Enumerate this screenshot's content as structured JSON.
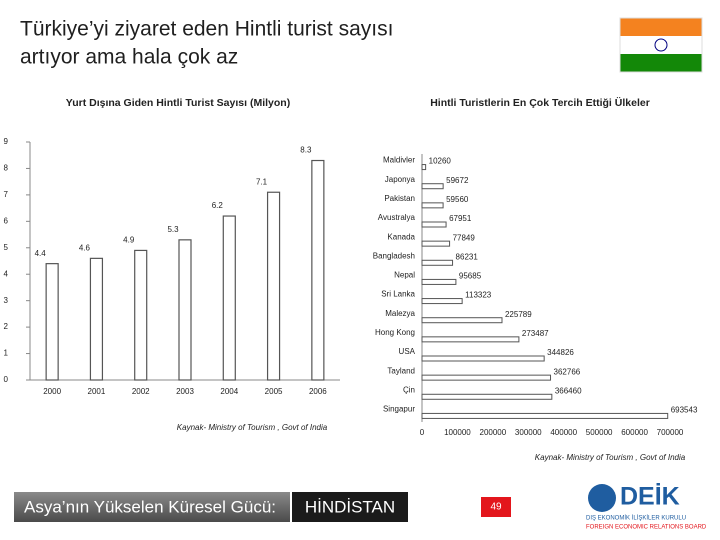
{
  "header": {
    "title_lines": [
      "Türkiye’yi ziyaret eden Hintli turist sayısı",
      "artıyor ama hala çok az"
    ]
  },
  "chart_data": [
    {
      "type": "bar",
      "title": "Yurt Dışına Giden Hintli Turist Sayısı (Milyon)",
      "categories": [
        "2000",
        "2001",
        "2002",
        "2003",
        "2004",
        "2005",
        "2006"
      ],
      "values": [
        4.4,
        4.6,
        4.9,
        5.3,
        6.2,
        7.1,
        8.3
      ],
      "color": "#ffffff",
      "ylim": [
        0,
        9
      ],
      "yticks": [
        0,
        1,
        2,
        3,
        4,
        5,
        6,
        7,
        8,
        9
      ],
      "grid": false,
      "source": "Kaynak- Ministry of Tourism , Govt of India"
    },
    {
      "type": "bar",
      "orientation": "horizontal",
      "title": "Hintli Turistlerin En Çok Tercih Ettiği Ülkeler",
      "categories": [
        "Maldivler",
        "Japonya",
        "Pakistan",
        "Avustralya",
        "Kanada",
        "Bangladesh",
        "Nepal",
        "Sri Lanka",
        "Malezya",
        "Hong Kong",
        "USA",
        "Tayland",
        "Çin",
        "Singapur"
      ],
      "values": [
        10260,
        59672,
        59560,
        67951,
        77849,
        86231,
        95685,
        113323,
        225789,
        273487,
        344826,
        362766,
        366460,
        693543
      ],
      "color": "#ffffff",
      "xlim": [
        0,
        700000
      ],
      "xticks": [
        0,
        100000,
        200000,
        300000,
        400000,
        500000,
        600000,
        700000
      ],
      "grid": false,
      "source": "Kaynak- Ministry of Tourism , Govt of India"
    }
  ],
  "footer": {
    "tagline": "Asya’nın Yükselen Küresel Gücü:",
    "country": "HİNDİSTAN",
    "page": "49",
    "logo": "DEİK",
    "logo_line1": "DIŞ EKONOMİK İLİŞKİLER KURULU",
    "logo_line2": "FOREIGN ECONOMIC RELATIONS BOARD"
  }
}
